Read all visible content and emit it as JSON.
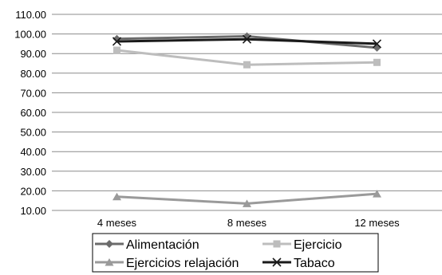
{
  "chart_data": {
    "type": "line",
    "categories": [
      "4 meses",
      "8 meses",
      "12 meses"
    ],
    "ylim": [
      10,
      110
    ],
    "yticks": [
      "110.00",
      "100.00",
      "90.00",
      "80.00",
      "70.00",
      "60.00",
      "50.00",
      "40.00",
      "30.00",
      "20.00",
      "10.00"
    ],
    "grid": true,
    "legend_position": "bottom",
    "series": [
      {
        "name": "Alimentación",
        "values": [
          97.5,
          98.8,
          93.0
        ],
        "color": "#6b6b6b",
        "marker": "diamond"
      },
      {
        "name": "Ejercicio",
        "values": [
          91.7,
          84.3,
          85.5
        ],
        "color": "#bdbdbd",
        "marker": "square"
      },
      {
        "name": "Ejercicios relajación",
        "values": [
          17.0,
          13.5,
          18.5
        ],
        "color": "#9a9a9a",
        "marker": "triangle"
      },
      {
        "name": "Tabaco",
        "values": [
          96.2,
          97.3,
          95.0
        ],
        "color": "#1a1a1a",
        "marker": "x"
      }
    ]
  }
}
